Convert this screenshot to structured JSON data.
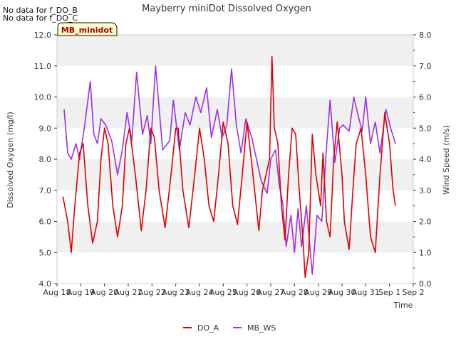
{
  "chart_data": {
    "type": "line",
    "title": "Mayberry miniDot Dissolved Oxygen",
    "xlabel": "Time",
    "ylabel": "Dissolved Oxygen (mg/l)",
    "y2label": "Wind Speed (m/s)",
    "ylim": [
      4.0,
      12.0
    ],
    "y2lim": [
      0.0,
      8.0
    ],
    "xlim": [
      18.0,
      33.0
    ],
    "grid": "horizontal bands",
    "legend_position": "bottom-center",
    "no_data_notes": [
      "No data for f_DO_B",
      "No data for f_DO_C"
    ],
    "badge": "MB_minidot",
    "x_ticks": [
      {
        "value": 18,
        "label": "Aug 18"
      },
      {
        "value": 19,
        "label": "Aug 19"
      },
      {
        "value": 20,
        "label": "Aug 20"
      },
      {
        "value": 21,
        "label": "Aug 21"
      },
      {
        "value": 22,
        "label": "Aug 22"
      },
      {
        "value": 23,
        "label": "Aug 23"
      },
      {
        "value": 24,
        "label": "Aug 24"
      },
      {
        "value": 25,
        "label": "Aug 25"
      },
      {
        "value": 26,
        "label": "Aug 26"
      },
      {
        "value": 27,
        "label": "Aug 27"
      },
      {
        "value": 28,
        "label": "Aug 28"
      },
      {
        "value": 29,
        "label": "Aug 29"
      },
      {
        "value": 30,
        "label": "Aug 30"
      },
      {
        "value": 31,
        "label": "Aug 31"
      },
      {
        "value": 32,
        "label": "Sep 1"
      },
      {
        "value": 33,
        "label": "Sep 2"
      }
    ],
    "y_ticks": [
      "4.0",
      "5.0",
      "6.0",
      "7.0",
      "8.0",
      "9.0",
      "10.0",
      "11.0",
      "12.0"
    ],
    "y2_ticks": [
      "0.0",
      "1.0",
      "2.0",
      "3.0",
      "4.0",
      "5.0",
      "6.0",
      "7.0",
      "8.0"
    ],
    "series": [
      {
        "name": "DO_A",
        "axis": "left",
        "color": "#dd0000",
        "x": [
          18.25,
          18.45,
          18.6,
          18.75,
          18.95,
          19.1,
          19.3,
          19.5,
          19.7,
          19.85,
          20.0,
          20.15,
          20.35,
          20.55,
          20.75,
          20.9,
          21.05,
          21.3,
          21.55,
          21.75,
          21.95,
          22.1,
          22.3,
          22.55,
          22.8,
          23.0,
          23.1,
          23.3,
          23.55,
          23.8,
          24.0,
          24.2,
          24.4,
          24.6,
          24.8,
          25.0,
          25.2,
          25.4,
          25.6,
          25.8,
          26.0,
          26.25,
          26.5,
          26.65,
          26.8,
          26.95,
          27.05,
          27.15,
          27.3,
          27.45,
          27.6,
          27.75,
          27.9,
          28.05,
          28.2,
          28.35,
          28.45,
          28.6,
          28.75,
          28.9,
          29.0,
          29.1,
          29.2,
          29.35,
          29.5,
          29.65,
          29.8,
          30.0,
          30.1,
          30.3,
          30.5,
          30.6,
          30.8,
          31.0,
          31.2,
          31.4,
          31.6,
          31.8,
          32.0,
          32.15,
          32.25
        ],
        "y": [
          6.8,
          6.0,
          5.0,
          6.5,
          8.2,
          8.5,
          6.5,
          5.3,
          6.0,
          8.0,
          9.0,
          8.5,
          6.5,
          5.5,
          6.5,
          8.5,
          9.0,
          7.5,
          5.7,
          7.0,
          9.0,
          8.7,
          7.0,
          5.8,
          7.5,
          9.0,
          9.0,
          7.0,
          5.8,
          7.5,
          9.0,
          8.0,
          6.5,
          6.0,
          7.5,
          9.2,
          8.5,
          6.5,
          5.9,
          7.5,
          9.2,
          7.5,
          5.7,
          7.0,
          7.5,
          8.0,
          11.3,
          9.0,
          8.5,
          6.5,
          5.4,
          7.5,
          9.0,
          8.8,
          7.0,
          5.5,
          4.2,
          5.0,
          8.8,
          7.5,
          7.0,
          6.5,
          8.2,
          6.0,
          5.5,
          8.0,
          9.2,
          7.5,
          6.0,
          5.1,
          7.5,
          8.5,
          9.0,
          7.5,
          5.5,
          5.0,
          7.5,
          9.5,
          8.5,
          7.0,
          6.5
        ]
      },
      {
        "name": "MB_WS",
        "axis": "right",
        "color": "#9a30e6",
        "x": [
          18.3,
          18.45,
          18.6,
          18.8,
          18.95,
          19.15,
          19.4,
          19.55,
          19.7,
          19.85,
          20.05,
          20.3,
          20.55,
          20.75,
          20.95,
          21.15,
          21.35,
          21.6,
          21.8,
          21.95,
          22.15,
          22.45,
          22.75,
          22.9,
          23.15,
          23.4,
          23.6,
          23.85,
          24.05,
          24.3,
          24.5,
          24.75,
          24.95,
          25.15,
          25.35,
          25.55,
          25.75,
          25.95,
          26.2,
          26.4,
          26.6,
          26.85,
          27.0,
          27.2,
          27.35,
          27.5,
          27.65,
          27.85,
          28.0,
          28.15,
          28.3,
          28.5,
          28.75,
          28.95,
          29.15,
          29.35,
          29.5,
          29.7,
          29.9,
          30.05,
          30.3,
          30.5,
          30.65,
          30.85,
          31.0,
          31.2,
          31.4,
          31.6,
          31.85,
          32.05,
          32.25
        ],
        "y": [
          5.6,
          4.2,
          4.0,
          4.5,
          4.0,
          5.0,
          6.5,
          4.8,
          4.5,
          5.3,
          5.1,
          4.6,
          3.5,
          4.3,
          5.5,
          4.6,
          6.8,
          4.8,
          5.4,
          4.5,
          7.0,
          4.3,
          4.6,
          5.9,
          4.3,
          5.5,
          5.1,
          6.0,
          5.5,
          6.3,
          4.7,
          5.6,
          4.7,
          5.1,
          6.9,
          5.1,
          4.2,
          5.3,
          4.7,
          4.0,
          3.3,
          2.9,
          4.0,
          4.3,
          3.2,
          2.6,
          1.2,
          2.2,
          1.0,
          2.4,
          1.2,
          2.5,
          0.3,
          2.2,
          2.0,
          4.4,
          5.9,
          3.9,
          5.0,
          5.1,
          4.9,
          6.0,
          5.5,
          4.9,
          6.0,
          4.5,
          5.2,
          4.2,
          5.6,
          5.0,
          4.5
        ]
      }
    ]
  }
}
